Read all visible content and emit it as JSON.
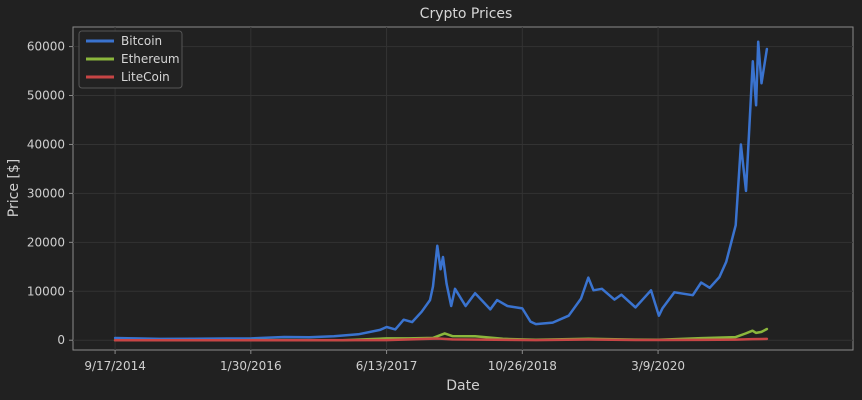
{
  "chart_data": {
    "type": "line",
    "title": "Crypto Prices",
    "xlabel": "Date",
    "ylabel": "Price [$]",
    "x_ticks": [
      "9/17/2014",
      "1/30/2016",
      "6/13/2017",
      "10/26/2018",
      "3/9/2020"
    ],
    "y_ticks": [
      "0",
      "10000",
      "20000",
      "30000",
      "40000",
      "50000",
      "60000"
    ],
    "ylim": [
      -2000,
      64000
    ],
    "xlim": [
      "2014-04-15",
      "2022-02-25"
    ],
    "grid": true,
    "legend_position": "top-left",
    "series": [
      {
        "name": "Bitcoin",
        "color": "#3a73cf",
        "points": [
          [
            "2014-09-17",
            460
          ],
          [
            "2014-12-01",
            380
          ],
          [
            "2015-03-01",
            260
          ],
          [
            "2015-07-01",
            280
          ],
          [
            "2015-11-01",
            350
          ],
          [
            "2016-02-01",
            380
          ],
          [
            "2016-06-01",
            650
          ],
          [
            "2016-09-01",
            600
          ],
          [
            "2016-12-01",
            800
          ],
          [
            "2017-03-01",
            1200
          ],
          [
            "2017-05-20",
            2100
          ],
          [
            "2017-06-13",
            2700
          ],
          [
            "2017-07-15",
            2200
          ],
          [
            "2017-08-15",
            4200
          ],
          [
            "2017-09-15",
            3700
          ],
          [
            "2017-10-20",
            5800
          ],
          [
            "2017-11-20",
            8200
          ],
          [
            "2017-12-01",
            11000
          ],
          [
            "2017-12-17",
            19300
          ],
          [
            "2017-12-29",
            14500
          ],
          [
            "2018-01-07",
            17000
          ],
          [
            "2018-01-20",
            11500
          ],
          [
            "2018-02-06",
            7000
          ],
          [
            "2018-02-20",
            10500
          ],
          [
            "2018-03-31",
            7000
          ],
          [
            "2018-05-05",
            9600
          ],
          [
            "2018-06-30",
            6300
          ],
          [
            "2018-07-25",
            8200
          ],
          [
            "2018-09-01",
            7000
          ],
          [
            "2018-10-26",
            6500
          ],
          [
            "2018-11-25",
            3800
          ],
          [
            "2018-12-15",
            3300
          ],
          [
            "2019-02-15",
            3600
          ],
          [
            "2019-04-15",
            5000
          ],
          [
            "2019-05-30",
            8500
          ],
          [
            "2019-06-26",
            12800
          ],
          [
            "2019-07-15",
            10200
          ],
          [
            "2019-08-15",
            10500
          ],
          [
            "2019-09-30",
            8300
          ],
          [
            "2019-10-26",
            9300
          ],
          [
            "2019-12-17",
            6700
          ],
          [
            "2020-02-12",
            10200
          ],
          [
            "2020-03-12",
            5000
          ],
          [
            "2020-03-25",
            6500
          ],
          [
            "2020-05-08",
            9800
          ],
          [
            "2020-07-15",
            9200
          ],
          [
            "2020-08-15",
            11800
          ],
          [
            "2020-09-15",
            10700
          ],
          [
            "2020-10-21",
            12900
          ],
          [
            "2020-11-15",
            16000
          ],
          [
            "2020-12-20",
            23500
          ],
          [
            "2021-01-08",
            40000
          ],
          [
            "2021-01-27",
            30500
          ],
          [
            "2021-02-21",
            57000
          ],
          [
            "2021-03-05",
            48000
          ],
          [
            "2021-03-13",
            61000
          ],
          [
            "2021-03-25",
            52500
          ],
          [
            "2021-04-14",
            59500
          ]
        ]
      },
      {
        "name": "Ethereum",
        "color": "#8bb63c",
        "points": [
          [
            "2014-09-17",
            0
          ],
          [
            "2016-01-01",
            1
          ],
          [
            "2016-06-01",
            14
          ],
          [
            "2017-01-01",
            8
          ],
          [
            "2017-06-13",
            380
          ],
          [
            "2017-09-01",
            380
          ],
          [
            "2017-12-01",
            470
          ],
          [
            "2018-01-13",
            1400
          ],
          [
            "2018-02-10",
            850
          ],
          [
            "2018-05-05",
            800
          ],
          [
            "2018-08-15",
            280
          ],
          [
            "2018-12-15",
            90
          ],
          [
            "2019-06-26",
            310
          ],
          [
            "2019-12-17",
            130
          ],
          [
            "2020-03-12",
            110
          ],
          [
            "2020-08-15",
            430
          ],
          [
            "2020-12-20",
            640
          ],
          [
            "2021-01-25",
            1380
          ],
          [
            "2021-02-20",
            1950
          ],
          [
            "2021-03-05",
            1500
          ],
          [
            "2021-03-25",
            1700
          ],
          [
            "2021-04-14",
            2300
          ]
        ]
      },
      {
        "name": "LiteCoin",
        "color": "#c74545",
        "points": [
          [
            "2014-09-17",
            5
          ],
          [
            "2015-06-01",
            3
          ],
          [
            "2016-06-01",
            4
          ],
          [
            "2017-06-13",
            30
          ],
          [
            "2017-12-19",
            360
          ],
          [
            "2018-02-10",
            160
          ],
          [
            "2018-12-15",
            25
          ],
          [
            "2019-06-26",
            140
          ],
          [
            "2019-12-17",
            40
          ],
          [
            "2020-03-12",
            35
          ],
          [
            "2020-08-15",
            60
          ],
          [
            "2020-12-20",
            120
          ],
          [
            "2021-02-20",
            230
          ],
          [
            "2021-04-14",
            270
          ]
        ]
      }
    ]
  }
}
